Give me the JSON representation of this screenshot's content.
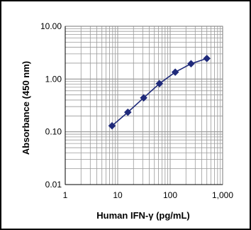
{
  "chart_data": {
    "type": "scatter",
    "title": "",
    "xlabel": "Human IFN-γ (pg/mL)",
    "ylabel": "Absorbance (450 nm)",
    "xscale": "log",
    "yscale": "log",
    "xlim": [
      1,
      1000
    ],
    "ylim": [
      0.01,
      10
    ],
    "grid": true,
    "x_ticks": [
      "1",
      "10",
      "100",
      "1,000"
    ],
    "y_ticks": [
      "0.01",
      "0.10",
      "1.00",
      "10.00"
    ],
    "series": [
      {
        "x": [
          7.8,
          15.6,
          31.25,
          62.5,
          125,
          250,
          500
        ],
        "y": [
          0.13,
          0.235,
          0.44,
          0.82,
          1.35,
          1.95,
          2.45
        ]
      }
    ],
    "colors": {
      "series": "#1f2a7a",
      "grid": "#9a9a9a",
      "axis": "#000000"
    }
  }
}
